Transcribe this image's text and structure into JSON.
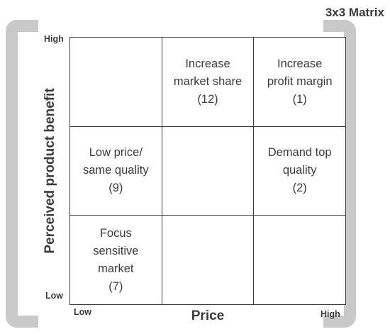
{
  "title": "3x3 Matrix",
  "y_axis": {
    "label": "Perceived product benefit",
    "high": "High",
    "low": "Low"
  },
  "x_axis": {
    "label": "Price",
    "low": "Low",
    "high": "High"
  },
  "cells": [
    {
      "text": ""
    },
    {
      "text": "Increase\nmarket share\n(12)"
    },
    {
      "text": "Increase\nprofit margin\n(1)"
    },
    {
      "text": "Low price/\nsame quality\n(9)"
    },
    {
      "text": ""
    },
    {
      "text": "Demand top\nquality\n(2)"
    },
    {
      "text": "Focus\nsensitive\nmarket\n(7)"
    },
    {
      "text": ""
    },
    {
      "text": ""
    }
  ]
}
